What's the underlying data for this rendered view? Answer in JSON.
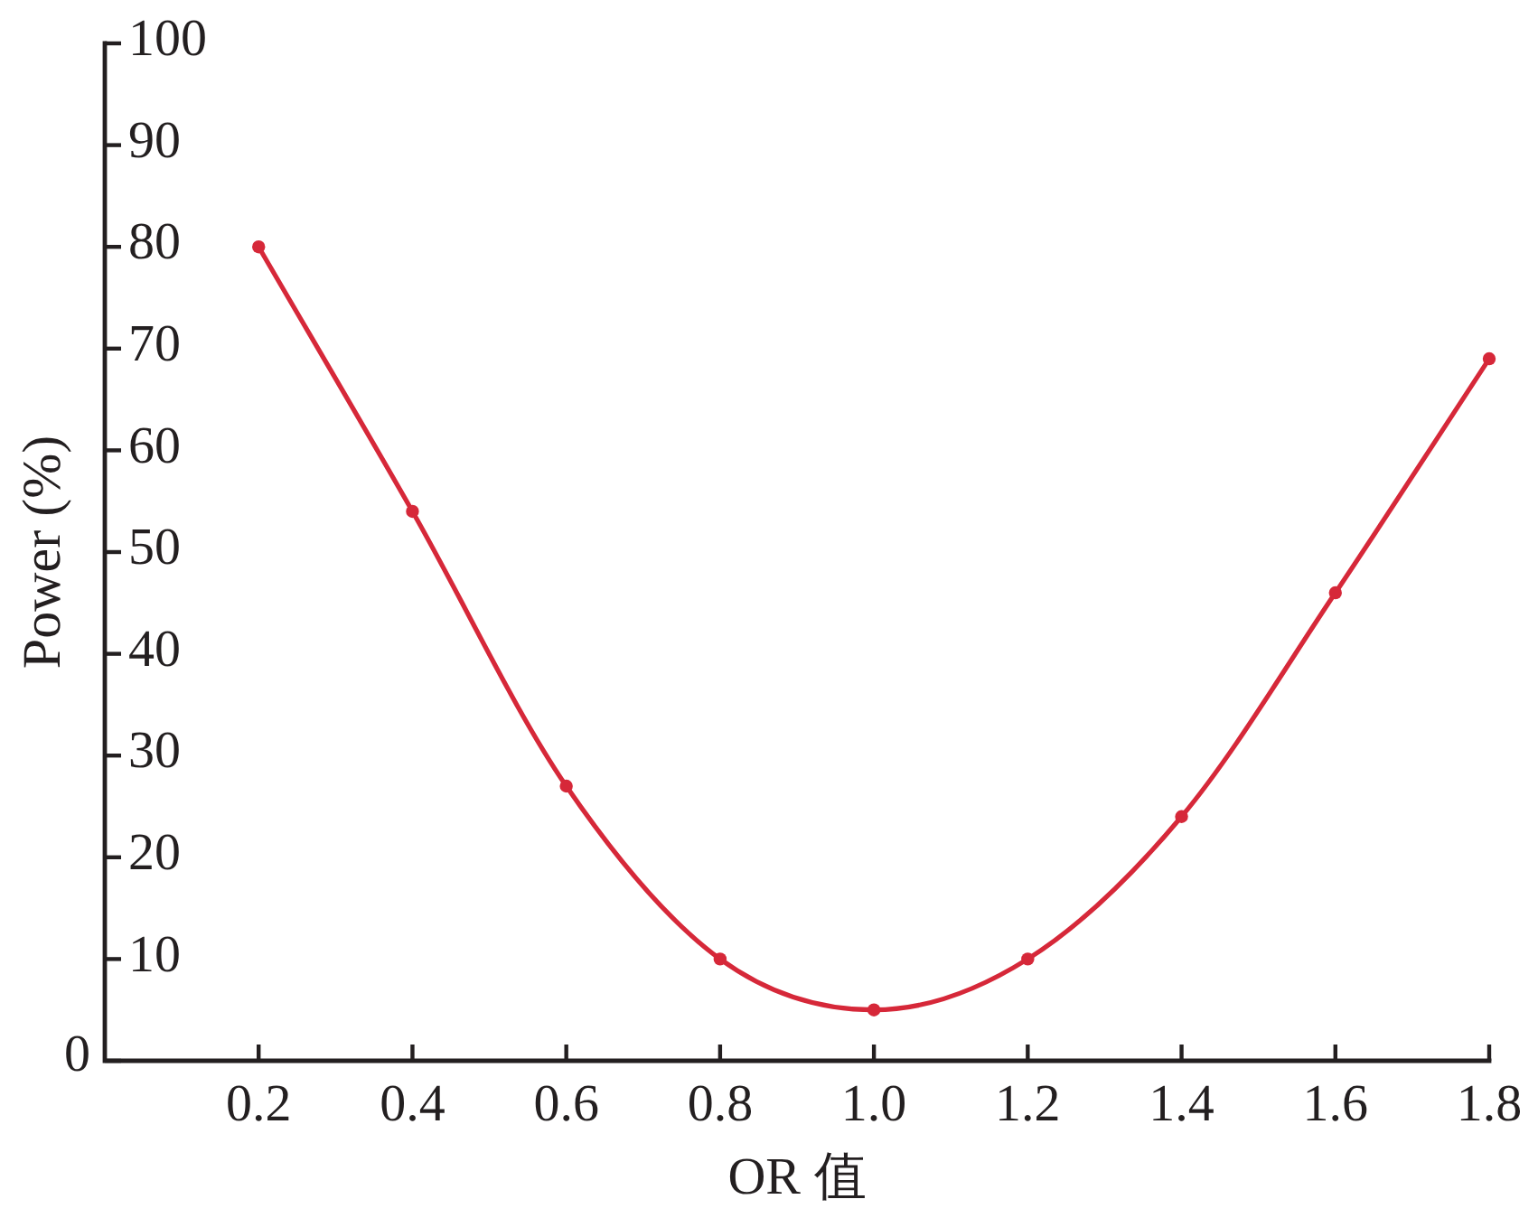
{
  "chart_data": {
    "type": "line",
    "xlabel": "OR 值",
    "ylabel": "Power (%)",
    "annotations": [
      "0"
    ],
    "x": [
      0.2,
      0.4,
      0.6,
      0.8,
      1.0,
      1.2,
      1.4,
      1.6,
      1.8
    ],
    "series": [
      {
        "color": "#d62839",
        "values": [
          80,
          54,
          27,
          10,
          5,
          10,
          24,
          46,
          69
        ]
      }
    ],
    "xlim": [
      0,
      1.8
    ],
    "ylim": [
      0,
      100
    ],
    "xticks": [
      0.2,
      0.4,
      0.6,
      0.8,
      {
        "value": 1.0,
        "label": "1.0"
      },
      1.2,
      1.4,
      1.6,
      1.8
    ],
    "yticks": [
      {
        "value": 0,
        "label": null
      },
      10,
      20,
      30,
      40,
      50,
      60,
      70,
      80,
      90,
      100
    ],
    "marker": "circle",
    "line_style": "solid"
  }
}
